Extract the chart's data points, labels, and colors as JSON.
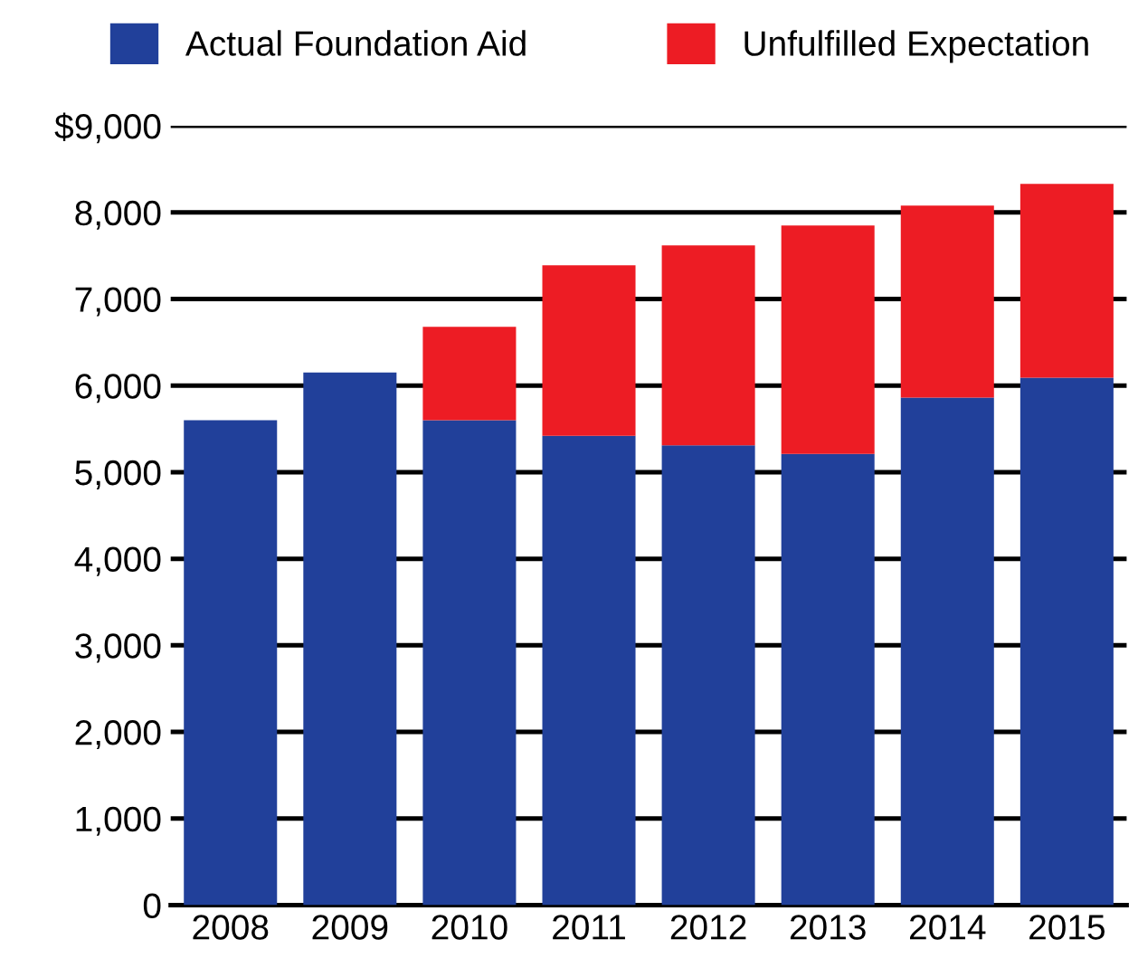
{
  "chart_data": {
    "type": "bar",
    "stacked": true,
    "categories": [
      "2008",
      "2009",
      "2010",
      "2011",
      "2012",
      "2013",
      "2014",
      "2015"
    ],
    "series": [
      {
        "name": "Actual Foundation Aid",
        "color": "#21409a",
        "values": [
          5600,
          6150,
          5600,
          5420,
          5310,
          5210,
          5860,
          6090
        ]
      },
      {
        "name": "Unfulfilled Expectation",
        "color": "#ed1c24",
        "values": [
          0,
          0,
          1080,
          1970,
          2310,
          2640,
          2220,
          2240
        ]
      }
    ],
    "ylim": [
      0,
      9000
    ],
    "yticks": [
      0,
      {
        "value": 1000,
        "label": "1,000"
      },
      {
        "value": 2000,
        "label": "2,000"
      },
      {
        "value": 3000,
        "label": "3,000"
      },
      {
        "value": 4000,
        "label": "4,000"
      },
      {
        "value": 5000,
        "label": "5,000"
      },
      {
        "value": 6000,
        "label": "6,000"
      },
      {
        "value": 7000,
        "label": "7,000"
      },
      {
        "value": 8000,
        "label": "8,000"
      },
      {
        "value": 9000,
        "label": "$9,000"
      }
    ],
    "grid": "y",
    "legend": "top"
  }
}
